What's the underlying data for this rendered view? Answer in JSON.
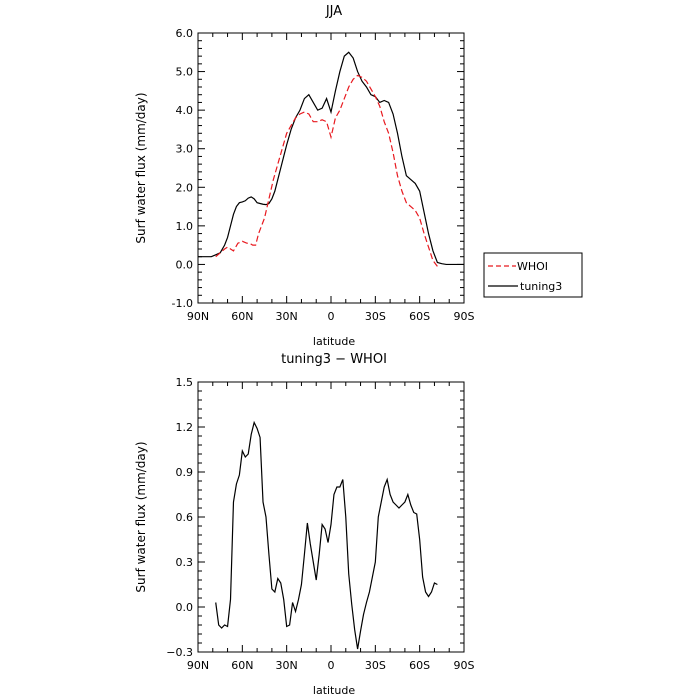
{
  "chart_data": [
    {
      "type": "line",
      "title": "JJA",
      "xlabel": "latitude",
      "ylabel": "Surf water flux (mm/day)",
      "xlim": [
        90,
        -90
      ],
      "ylim": [
        -1.0,
        6.0
      ],
      "xticks": [
        90,
        60,
        30,
        0,
        -30,
        -60,
        -90
      ],
      "xticklabels": [
        "90N",
        "60N",
        "30N",
        "0",
        "30S",
        "60S",
        "90S"
      ],
      "yticks": [
        -1.0,
        0.0,
        1.0,
        2.0,
        3.0,
        4.0,
        5.0,
        6.0
      ],
      "yticklabels": [
        "-1.0",
        "0.0",
        "1.0",
        "2.0",
        "3.0",
        "4.0",
        "5.0",
        "6.0"
      ],
      "legend": "right",
      "series": [
        {
          "name": "WHOI",
          "color": "#e8191f",
          "dash": "dashed",
          "x": [
            78,
            75,
            72,
            70,
            68,
            66,
            63,
            60,
            57,
            55,
            53,
            51,
            49,
            47,
            45,
            42,
            39,
            36,
            33,
            30,
            27,
            24,
            21,
            18,
            15,
            12,
            9,
            6,
            3,
            0,
            -3,
            -6,
            -9,
            -12,
            -15,
            -18,
            -21,
            -24,
            -27,
            -30,
            -33,
            -36,
            -39,
            -42,
            -45,
            -48,
            -51,
            -54,
            -57,
            -60,
            -63,
            -66,
            -69,
            -72
          ],
          "y": [
            0.2,
            0.3,
            0.4,
            0.45,
            0.4,
            0.35,
            0.55,
            0.6,
            0.55,
            0.55,
            0.5,
            0.5,
            0.8,
            1.0,
            1.2,
            1.7,
            2.2,
            2.6,
            3.0,
            3.4,
            3.6,
            3.8,
            3.9,
            3.95,
            3.9,
            3.7,
            3.7,
            3.75,
            3.7,
            3.3,
            3.8,
            4.0,
            4.3,
            4.6,
            4.8,
            4.9,
            4.85,
            4.75,
            4.55,
            4.35,
            4.1,
            3.7,
            3.4,
            2.9,
            2.3,
            1.9,
            1.6,
            1.5,
            1.4,
            1.2,
            0.8,
            0.45,
            0.1,
            -0.05
          ]
        },
        {
          "name": "tuning3",
          "color": "#000000",
          "dash": "solid",
          "x": [
            90,
            87,
            84,
            81,
            78,
            75,
            72,
            70,
            68,
            66,
            64,
            62,
            60,
            58,
            56,
            54,
            52,
            50,
            48,
            46,
            44,
            42,
            40,
            38,
            36,
            34,
            32,
            30,
            27,
            24,
            21,
            18,
            15,
            12,
            9,
            6,
            3,
            0,
            -3,
            -6,
            -9,
            -12,
            -15,
            -18,
            -21,
            -24,
            -27,
            -30,
            -33,
            -36,
            -39,
            -42,
            -45,
            -48,
            -51,
            -54,
            -57,
            -60,
            -63,
            -66,
            -69,
            -72,
            -75,
            -78,
            -81,
            -84,
            -87,
            -90
          ],
          "y": [
            0.2,
            0.2,
            0.2,
            0.2,
            0.25,
            0.3,
            0.5,
            0.7,
            1.0,
            1.3,
            1.5,
            1.6,
            1.62,
            1.65,
            1.72,
            1.75,
            1.7,
            1.6,
            1.58,
            1.56,
            1.55,
            1.58,
            1.7,
            1.9,
            2.2,
            2.5,
            2.8,
            3.1,
            3.5,
            3.8,
            4.0,
            4.3,
            4.4,
            4.2,
            4.0,
            4.05,
            4.3,
            3.95,
            4.5,
            5.0,
            5.4,
            5.5,
            5.35,
            5.0,
            4.75,
            4.6,
            4.4,
            4.35,
            4.2,
            4.25,
            4.2,
            3.9,
            3.4,
            2.8,
            2.3,
            2.2,
            2.1,
            1.9,
            1.35,
            0.8,
            0.35,
            0.05,
            0.02,
            0.0,
            0.0,
            0.0,
            0.0,
            0.0
          ]
        }
      ]
    },
    {
      "type": "line",
      "title": "tuning3 − WHOI",
      "xlabel": "latitude",
      "ylabel": "Surf water flux (mm/day)",
      "xlim": [
        90,
        -90
      ],
      "ylim": [
        -0.3,
        1.5
      ],
      "xticks": [
        90,
        60,
        30,
        0,
        -30,
        -60,
        -90
      ],
      "xticklabels": [
        "90N",
        "60N",
        "30N",
        "0",
        "30S",
        "60S",
        "90S"
      ],
      "yticks": [
        -0.3,
        0.0,
        0.3,
        0.6,
        0.9,
        1.2,
        1.5
      ],
      "yticklabels": [
        "−0.3",
        "0.0",
        "0.3",
        "0.6",
        "0.9",
        "1.2",
        "1.5"
      ],
      "series": [
        {
          "color": "#000000",
          "dash": "solid",
          "x": [
            78,
            76,
            74,
            72,
            70,
            68,
            66,
            64,
            62,
            60,
            58,
            56,
            54,
            52,
            50,
            48,
            46,
            44,
            42,
            40,
            38,
            36,
            34,
            32,
            30,
            28,
            26,
            24,
            22,
            20,
            18,
            16,
            14,
            12,
            10,
            8,
            6,
            4,
            2,
            0,
            -2,
            -4,
            -6,
            -8,
            -10,
            -12,
            -14,
            -16,
            -18,
            -20,
            -22,
            -24,
            -26,
            -28,
            -30,
            -32,
            -34,
            -36,
            -38,
            -40,
            -42,
            -44,
            -46,
            -48,
            -50,
            -52,
            -54,
            -56,
            -58,
            -60,
            -62,
            -64,
            -66,
            -68,
            -70,
            -72
          ],
          "y": [
            0.03,
            -0.12,
            -0.14,
            -0.12,
            -0.13,
            0.05,
            0.7,
            0.82,
            0.88,
            1.04,
            1.0,
            1.02,
            1.15,
            1.23,
            1.19,
            1.13,
            0.7,
            0.6,
            0.35,
            0.12,
            0.1,
            0.19,
            0.16,
            0.05,
            -0.13,
            -0.12,
            0.03,
            -0.03,
            0.05,
            0.15,
            0.35,
            0.56,
            0.42,
            0.3,
            0.18,
            0.35,
            0.55,
            0.52,
            0.43,
            0.55,
            0.75,
            0.8,
            0.8,
            0.85,
            0.6,
            0.22,
            0.02,
            -0.15,
            -0.28,
            -0.16,
            -0.05,
            0.03,
            0.1,
            0.2,
            0.3,
            0.6,
            0.7,
            0.8,
            0.85,
            0.75,
            0.7,
            0.68,
            0.66,
            0.68,
            0.7,
            0.75,
            0.68,
            0.63,
            0.62,
            0.45,
            0.2,
            0.1,
            0.07,
            0.1,
            0.16,
            0.15
          ]
        }
      ]
    }
  ]
}
